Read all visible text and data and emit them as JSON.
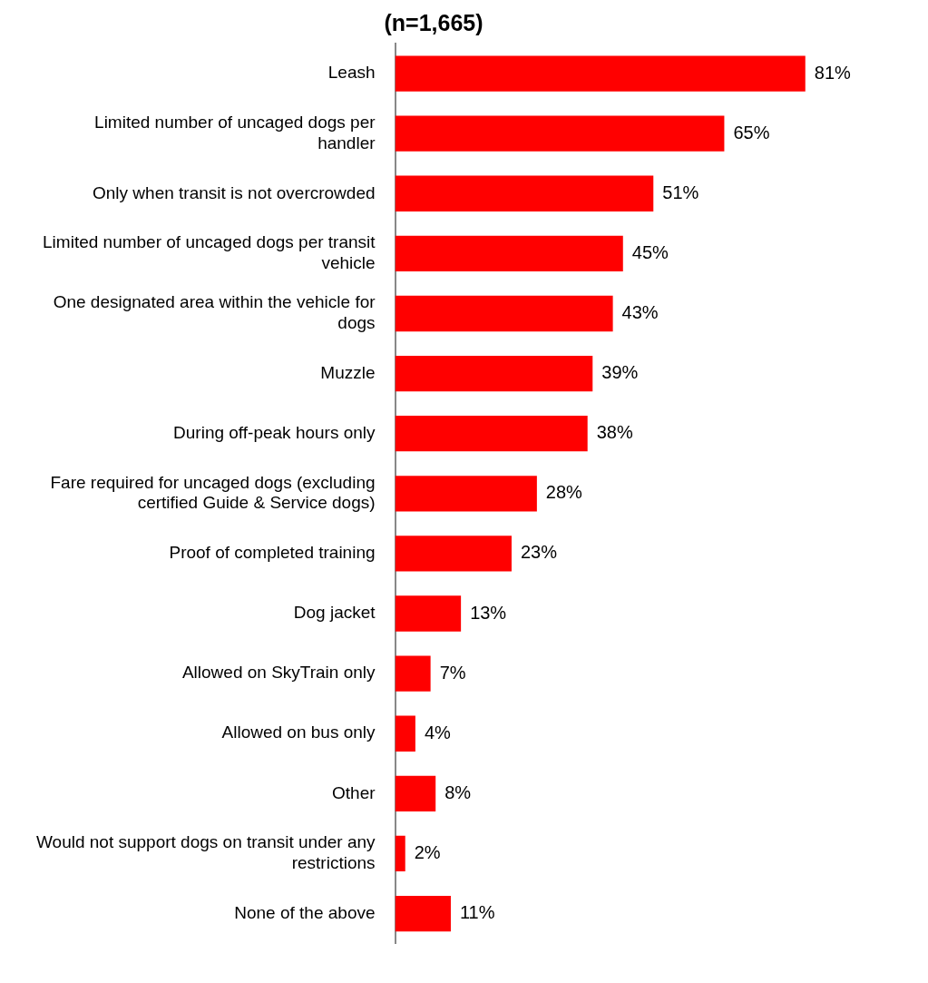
{
  "chart_data": {
    "type": "bar",
    "orientation": "horizontal",
    "title": "(n=1,665)",
    "categories": [
      "Leash",
      "Limited number of uncaged dogs per handler",
      "Only when transit is not overcrowded",
      "Limited number of uncaged dogs per transit vehicle",
      "One designated area within the vehicle for dogs",
      "Muzzle",
      "During off-peak hours only",
      "Fare required for uncaged dogs (excluding certified Guide & Service dogs)",
      "Proof of completed training",
      "Dog jacket",
      "Allowed on SkyTrain only",
      "Allowed on bus only",
      "Other",
      "Would not support dogs on transit under any restrictions",
      "None of the above"
    ],
    "values": [
      81,
      65,
      51,
      45,
      43,
      39,
      38,
      28,
      23,
      13,
      7,
      4,
      8,
      2,
      11
    ],
    "value_labels": [
      "81%",
      "65%",
      "51%",
      "45%",
      "43%",
      "39%",
      "38%",
      "28%",
      "23%",
      "13%",
      "7%",
      "4%",
      "8%",
      "2%",
      "11%"
    ],
    "color": "#ff0000",
    "legend": false,
    "tick_labels": "y"
  }
}
